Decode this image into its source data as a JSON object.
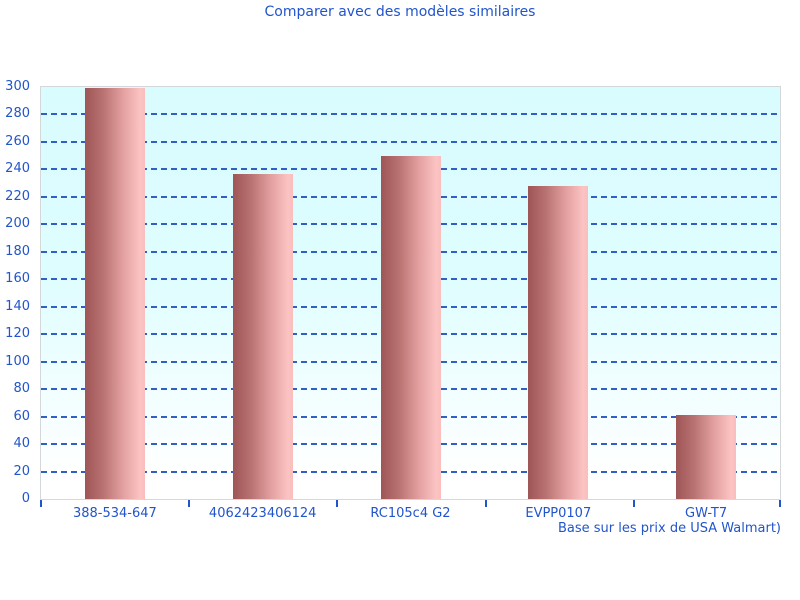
{
  "chart_data": {
    "type": "bar",
    "title": "Comparer avec des modèles similaires",
    "footnote": "Base sur les prix de USA Walmart)",
    "categories": [
      "388-534-647",
      "4062423406124",
      "RC105c4 G2",
      "EVPP0107",
      "GW-T7"
    ],
    "values": [
      299,
      237,
      250,
      228,
      61
    ],
    "xlabel": "",
    "ylabel": "",
    "ylim": [
      0,
      300
    ],
    "ytick_step": 20,
    "grid": "horizontal-dashed",
    "legend": "none",
    "colors": {
      "title_text": "#2255cb",
      "axis_text": "#2255cb",
      "gridline": "#3060c4",
      "tick": "#2255cb",
      "plot_border": "#d5d8da",
      "plot_background_top": "#d9fcff",
      "plot_background_bottom": "#ffffff",
      "bar_gradient_dark": "#9e5555",
      "bar_gradient_light": "#fcc3c3"
    }
  }
}
